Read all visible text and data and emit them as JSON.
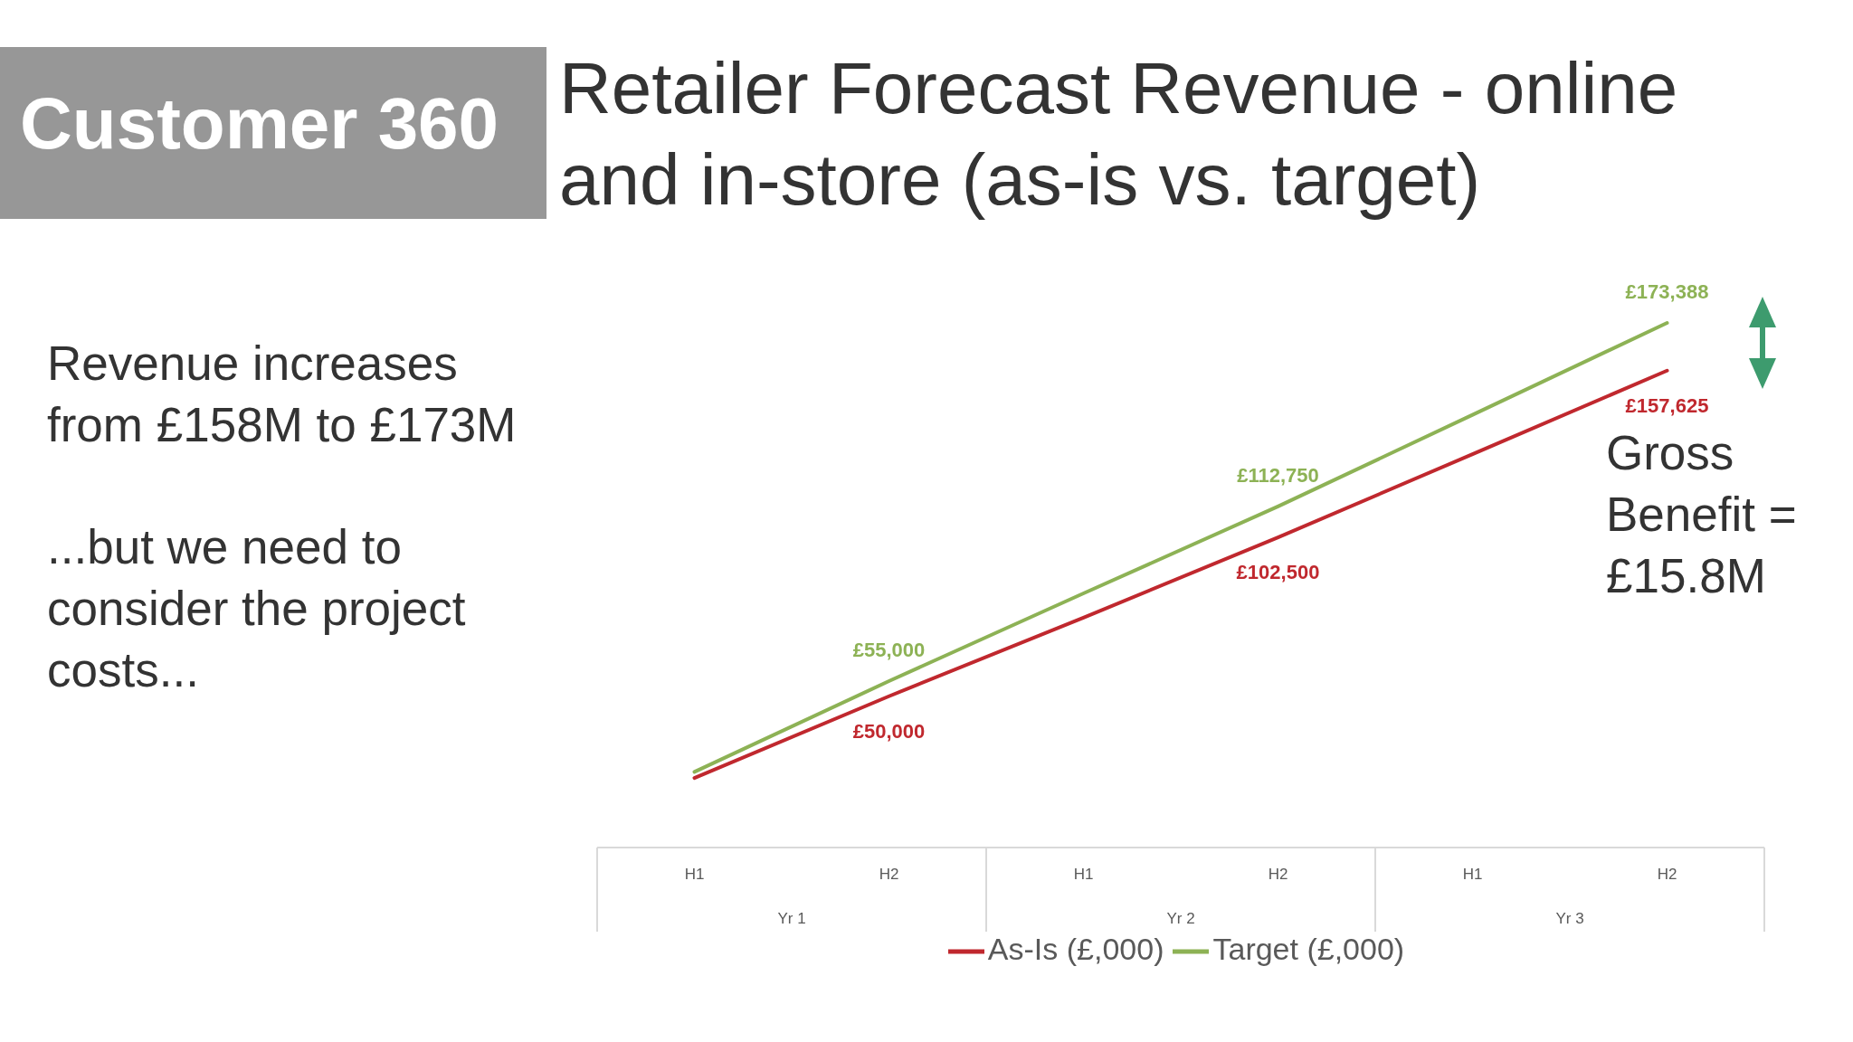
{
  "chart_data": {
    "type": "line",
    "title": "Retailer Forecast Revenue - online and in-store (as-is vs. target)",
    "subtitle": "Customer 360",
    "categories": [
      "H1",
      "H2",
      "H1",
      "H2",
      "H1",
      "H2"
    ],
    "series": [
      {
        "name": "As-Is (£,000)",
        "color": "#c0282e",
        "values": [
          23000,
          50000,
          76000,
          102500,
          130000,
          157625
        ],
        "value_labels": [
          null,
          "£50,000",
          null,
          "£102,500",
          null,
          "£157,625"
        ]
      },
      {
        "name": "Target (£,000)",
        "color": "#8db255",
        "values": [
          25000,
          55000,
          84000,
          112750,
          143000,
          173388
        ],
        "value_labels": [
          null,
          "£55,000",
          null,
          "£112,750",
          null,
          "£173,388"
        ]
      }
    ],
    "legend": "bottom",
    "annotations": [
      "Revenue increases from £158M to £173M",
      "...but we need to consider the project costs...",
      "Gross Benefit = £15.8M",
      "Yr 1",
      "Yr 2",
      "Yr 3"
    ]
  }
}
